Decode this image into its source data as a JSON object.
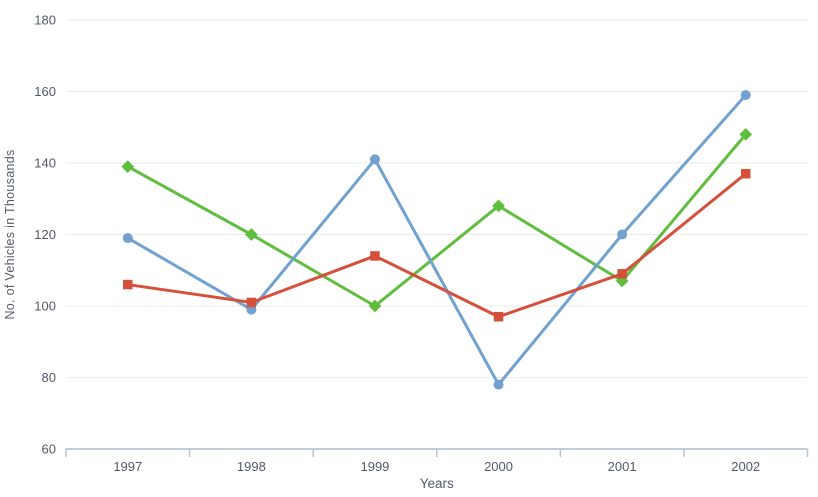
{
  "chart_data": {
    "type": "line",
    "title": "",
    "xlabel": "Years",
    "ylabel": "No. of Vehicles in Thousands",
    "categories": [
      "1997",
      "1998",
      "1999",
      "2000",
      "2001",
      "2002"
    ],
    "series": [
      {
        "name": "green",
        "color": "#60BE3F",
        "marker": "diamond",
        "values": [
          139,
          120,
          100,
          128,
          107,
          148
        ]
      },
      {
        "name": "blue",
        "color": "#71A1CE",
        "marker": "circle",
        "values": [
          119,
          99,
          141,
          78,
          120,
          159
        ]
      },
      {
        "name": "red",
        "color": "#D5503B",
        "marker": "square",
        "values": [
          106,
          101,
          114,
          97,
          109,
          137
        ]
      }
    ],
    "ylim": [
      60,
      180
    ],
    "yticks": [
      60,
      80,
      100,
      120,
      140,
      160,
      180
    ],
    "grid": true,
    "legend_position": "none",
    "colors": {
      "grid": "#EBEBEB",
      "axis_line": "#B9C6D5",
      "tick_label": "#545969",
      "axis_title": "#555B69",
      "background": "#FFFFFF"
    }
  }
}
